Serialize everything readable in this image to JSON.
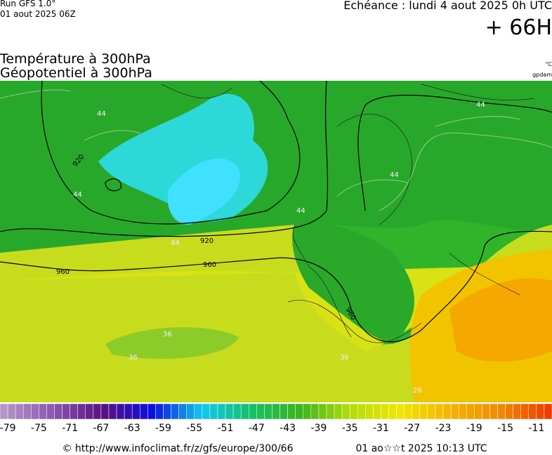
{
  "header": {
    "run": "Run GFS 1.0°",
    "run_date": "01 aout 2025 06Z",
    "valid": "Echéance : lundi 4 aout 2025 0h UTC",
    "lead": "+ 66H",
    "title_1": "Température à 300hPa",
    "title_2": "Géopotentiel à 300hPa",
    "unit_1": "°C",
    "unit_2": "gpdam"
  },
  "map_labels": [
    "920",
    "920",
    "960",
    "960",
    "960",
    "44",
    "44",
    "44",
    "44",
    "44",
    "44",
    "36",
    "36",
    "36",
    "28"
  ],
  "colorbar": {
    "range": [
      -80,
      -9
    ],
    "ticks": [
      -79,
      -75,
      -71,
      -67,
      -63,
      -59,
      -55,
      -51,
      -47,
      -43,
      -39,
      -35,
      -31,
      -27,
      -23,
      -19,
      -15,
      -11
    ],
    "colors": [
      "#b496c8",
      "#8a56b0",
      "#5a1082",
      "#0a10e0",
      "#10c8f0",
      "#14c068",
      "#3cb41e",
      "#b4dc0a",
      "#f0e600",
      "#f5b400",
      "#f08c00",
      "#f03c00"
    ]
  },
  "footer": {
    "source": "© http://www.infoclimat.fr/z/gfs/europe/300/66",
    "generated": "01 ao☆☆t 2025 10:13 UTC"
  }
}
